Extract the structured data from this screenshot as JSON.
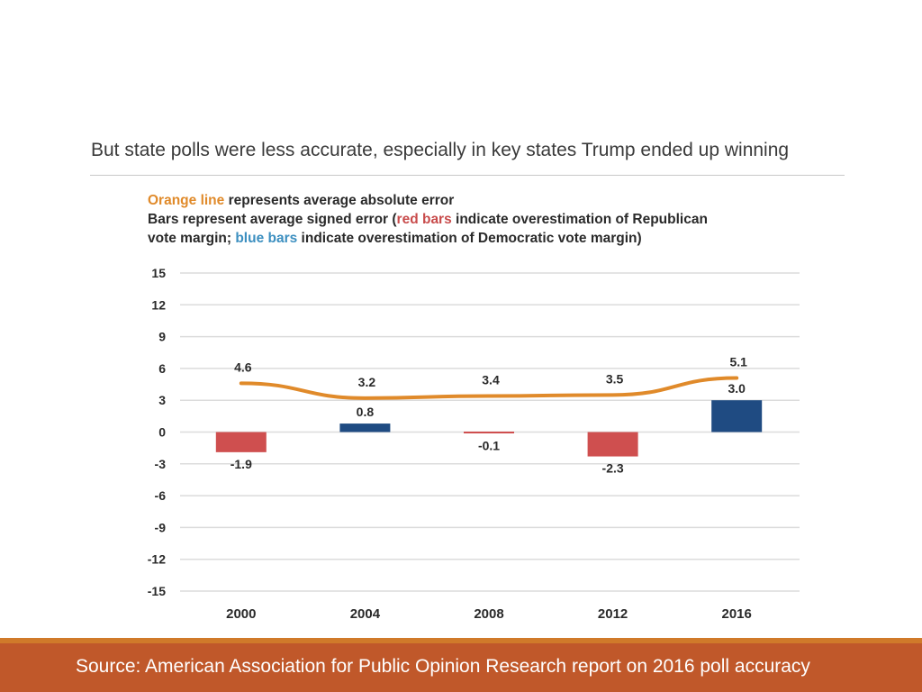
{
  "slide": {
    "title": "But state polls were less accurate, especially in key states Trump ended up winning"
  },
  "legend": {
    "line1_orange": "Orange line",
    "line1_rest": " represents average absolute error",
    "line2_a": "Bars represent average signed error (",
    "line2_red": "red bars",
    "line2_b": " indicate overestimation of Republican",
    "line3_a": "vote margin; ",
    "line3_blue": "blue bars",
    "line3_b": " indicate overestimation of Democratic vote margin)"
  },
  "colors": {
    "orange_line": "#e08a2a",
    "red_bar": "#cf4f4f",
    "blue_bar": "#1f4b82",
    "footer": "#c0582a"
  },
  "chart_data": {
    "type": "bar",
    "categories": [
      "2000",
      "2004",
      "2008",
      "2012",
      "2016"
    ],
    "series": [
      {
        "name": "Average signed error",
        "type": "bar",
        "values": [
          -1.9,
          0.8,
          -0.1,
          -2.3,
          3.0
        ],
        "labels": [
          "-1.9",
          "0.8",
          "-0.1",
          "-2.3",
          "3.0"
        ],
        "colors": [
          "red",
          "blue",
          "red",
          "red",
          "blue"
        ]
      },
      {
        "name": "Average absolute error",
        "type": "line",
        "values": [
          4.6,
          3.2,
          3.4,
          3.5,
          5.1
        ],
        "labels": [
          "4.6",
          "3.2",
          "3.4",
          "3.5",
          "5.1"
        ]
      }
    ],
    "yticks": [
      "15",
      "12",
      "9",
      "6",
      "3",
      "0",
      "-3",
      "-6",
      "-9",
      "-12",
      "-15"
    ],
    "ylim": [
      -15,
      15
    ],
    "grid": true,
    "title": "",
    "xlabel": "",
    "ylabel": ""
  },
  "footer": {
    "source": "Source: American Association for Public Opinion Research report on 2016 poll accuracy"
  }
}
